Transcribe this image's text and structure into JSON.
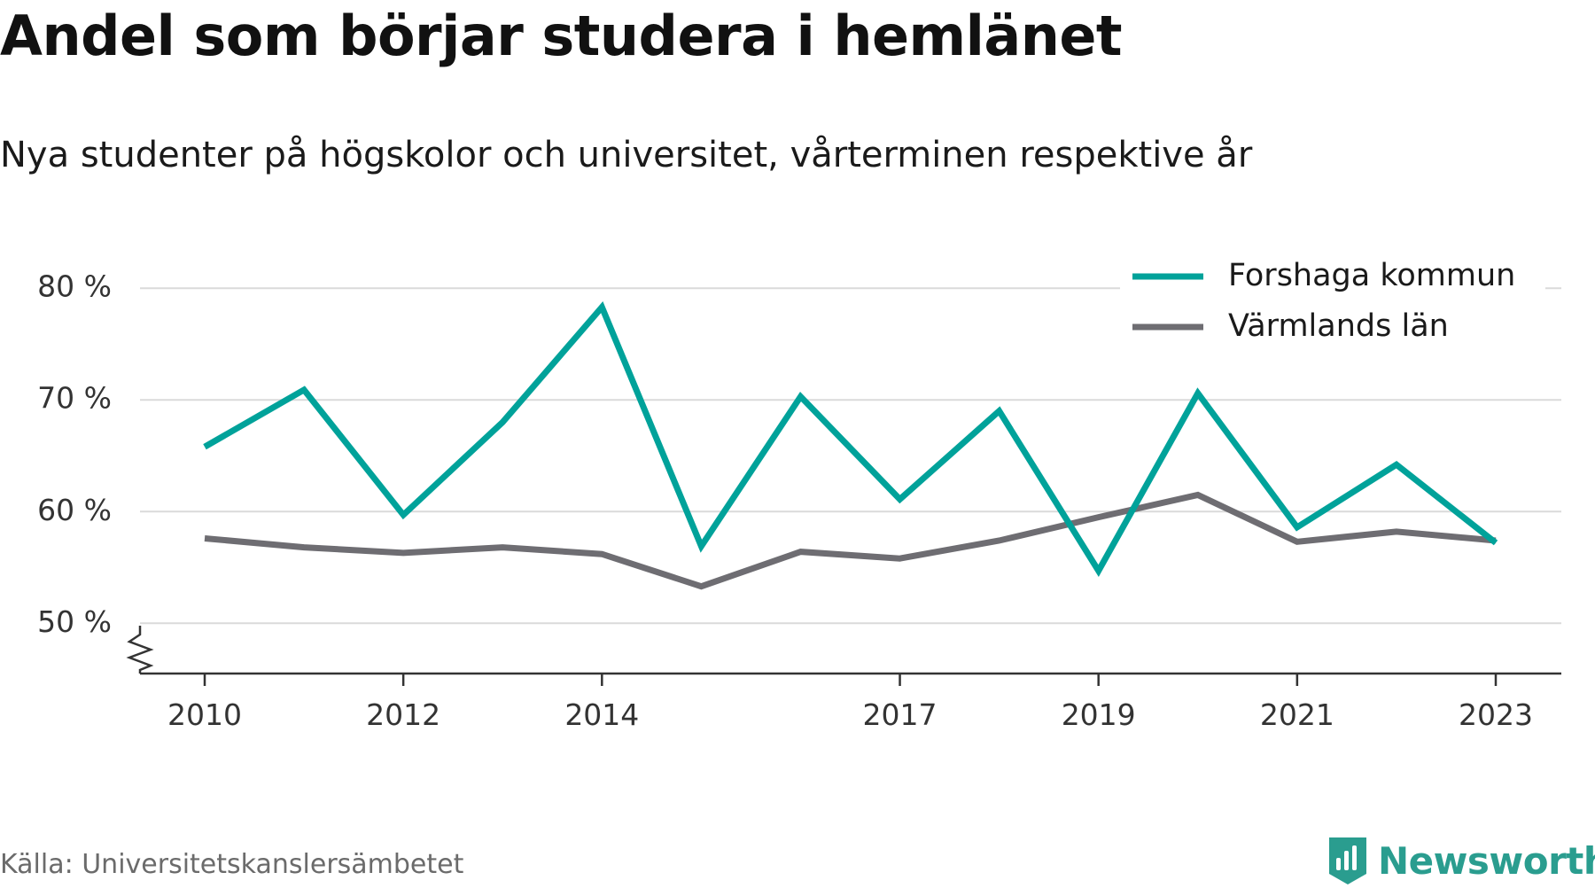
{
  "title": "Andel som börjar studera i hemlänet",
  "subtitle": "Nya studenter på högskolor och universitet, vårterminen respektive år",
  "source": "Källa: Universitetskanslersämbetet",
  "brand": {
    "name": "Newsworthy",
    "icon": "newsworthy-logo-icon",
    "color": "#2a9d8f"
  },
  "chart_data": {
    "type": "line",
    "x": [
      2010,
      2011,
      2012,
      2013,
      2014,
      2015,
      2016,
      2017,
      2018,
      2019,
      2020,
      2021,
      2022,
      2023
    ],
    "x_tick_labels": [
      "2010",
      "2012",
      "2014",
      "2017",
      "2019",
      "2021",
      "2023"
    ],
    "x_ticks": [
      2010,
      2012,
      2014,
      2017,
      2019,
      2021,
      2023
    ],
    "y_ticks": [
      50,
      60,
      70,
      80
    ],
    "y_tick_labels": [
      "50 %",
      "60 %",
      "70 %",
      "80 %"
    ],
    "ylim": [
      45.5,
      82
    ],
    "grid": true,
    "axis_break": true,
    "legend_position": "top-right",
    "series": [
      {
        "name": "Forshaga kommun",
        "color": "#00a29a",
        "values": [
          65.8,
          70.9,
          59.7,
          68.0,
          78.3,
          56.9,
          70.3,
          61.1,
          69.0,
          54.7,
          70.6,
          58.6,
          64.2,
          57.2
        ]
      },
      {
        "name": "Värmlands län",
        "color": "#6e6d72",
        "values": [
          57.6,
          56.8,
          56.3,
          56.8,
          56.2,
          53.3,
          56.4,
          55.8,
          57.4,
          59.5,
          61.5,
          57.3,
          58.2,
          57.4
        ]
      }
    ]
  }
}
